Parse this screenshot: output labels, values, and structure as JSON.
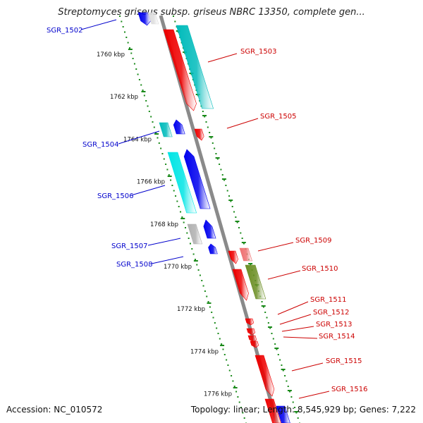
{
  "header": {
    "title": "Streptomyces griseus subsp. griseus NBRC 13350, complete gen..."
  },
  "footer": {
    "accession": "Accession: NC_010572",
    "summary": "Topology: linear; Length: 8,545,929 bp; Genes: 7,222"
  },
  "colors": {
    "forward_label": "#0000cc",
    "reverse_label": "#cc0000",
    "ruler_ticks": "#1a8a1a",
    "backbone": "#8a8a8a"
  },
  "axis": {
    "unit": "kbp",
    "tick_labels": [
      "1760 kbp",
      "1762 kbp",
      "1764 kbp",
      "1766 kbp",
      "1768 kbp",
      "1770 kbp",
      "1772 kbp",
      "1774 kbp",
      "1776 kbp"
    ],
    "tick_values_kbp": [
      1760,
      1762,
      1764,
      1766,
      1768,
      1770,
      1772,
      1774,
      1776
    ]
  },
  "genes": [
    {
      "name": "SGR_1502",
      "strand": "forward",
      "color": "#0000ee"
    },
    {
      "name": "SGR_1503",
      "strand": "reverse",
      "color": "#ee0000"
    },
    {
      "name": "SGR_1504",
      "strand": "forward",
      "color": "#0000ee"
    },
    {
      "name": "SGR_1505",
      "strand": "reverse",
      "color": "#ee0000"
    },
    {
      "name": "SGR_1506",
      "strand": "forward",
      "color": "#00e5e5"
    },
    {
      "name": "SGR_1507",
      "strand": "forward",
      "color": "#b0b0b0"
    },
    {
      "name": "SGR_1508",
      "strand": "forward",
      "color": "#0000ee"
    },
    {
      "name": "SGR_1509",
      "strand": "reverse",
      "color": "#ee7070"
    },
    {
      "name": "SGR_1510",
      "strand": "reverse",
      "color": "#6b8e23"
    },
    {
      "name": "SGR_1511",
      "strand": "reverse",
      "color": "#ee0000"
    },
    {
      "name": "SGR_1512",
      "strand": "reverse",
      "color": "#ee0000"
    },
    {
      "name": "SGR_1513",
      "strand": "reverse",
      "color": "#ee0000"
    },
    {
      "name": "SGR_1514",
      "strand": "reverse",
      "color": "#ee0000"
    },
    {
      "name": "SGR_1515",
      "strand": "reverse",
      "color": "#ee0000"
    },
    {
      "name": "SGR_1516",
      "strand": "reverse",
      "color": "#ee0000"
    }
  ]
}
